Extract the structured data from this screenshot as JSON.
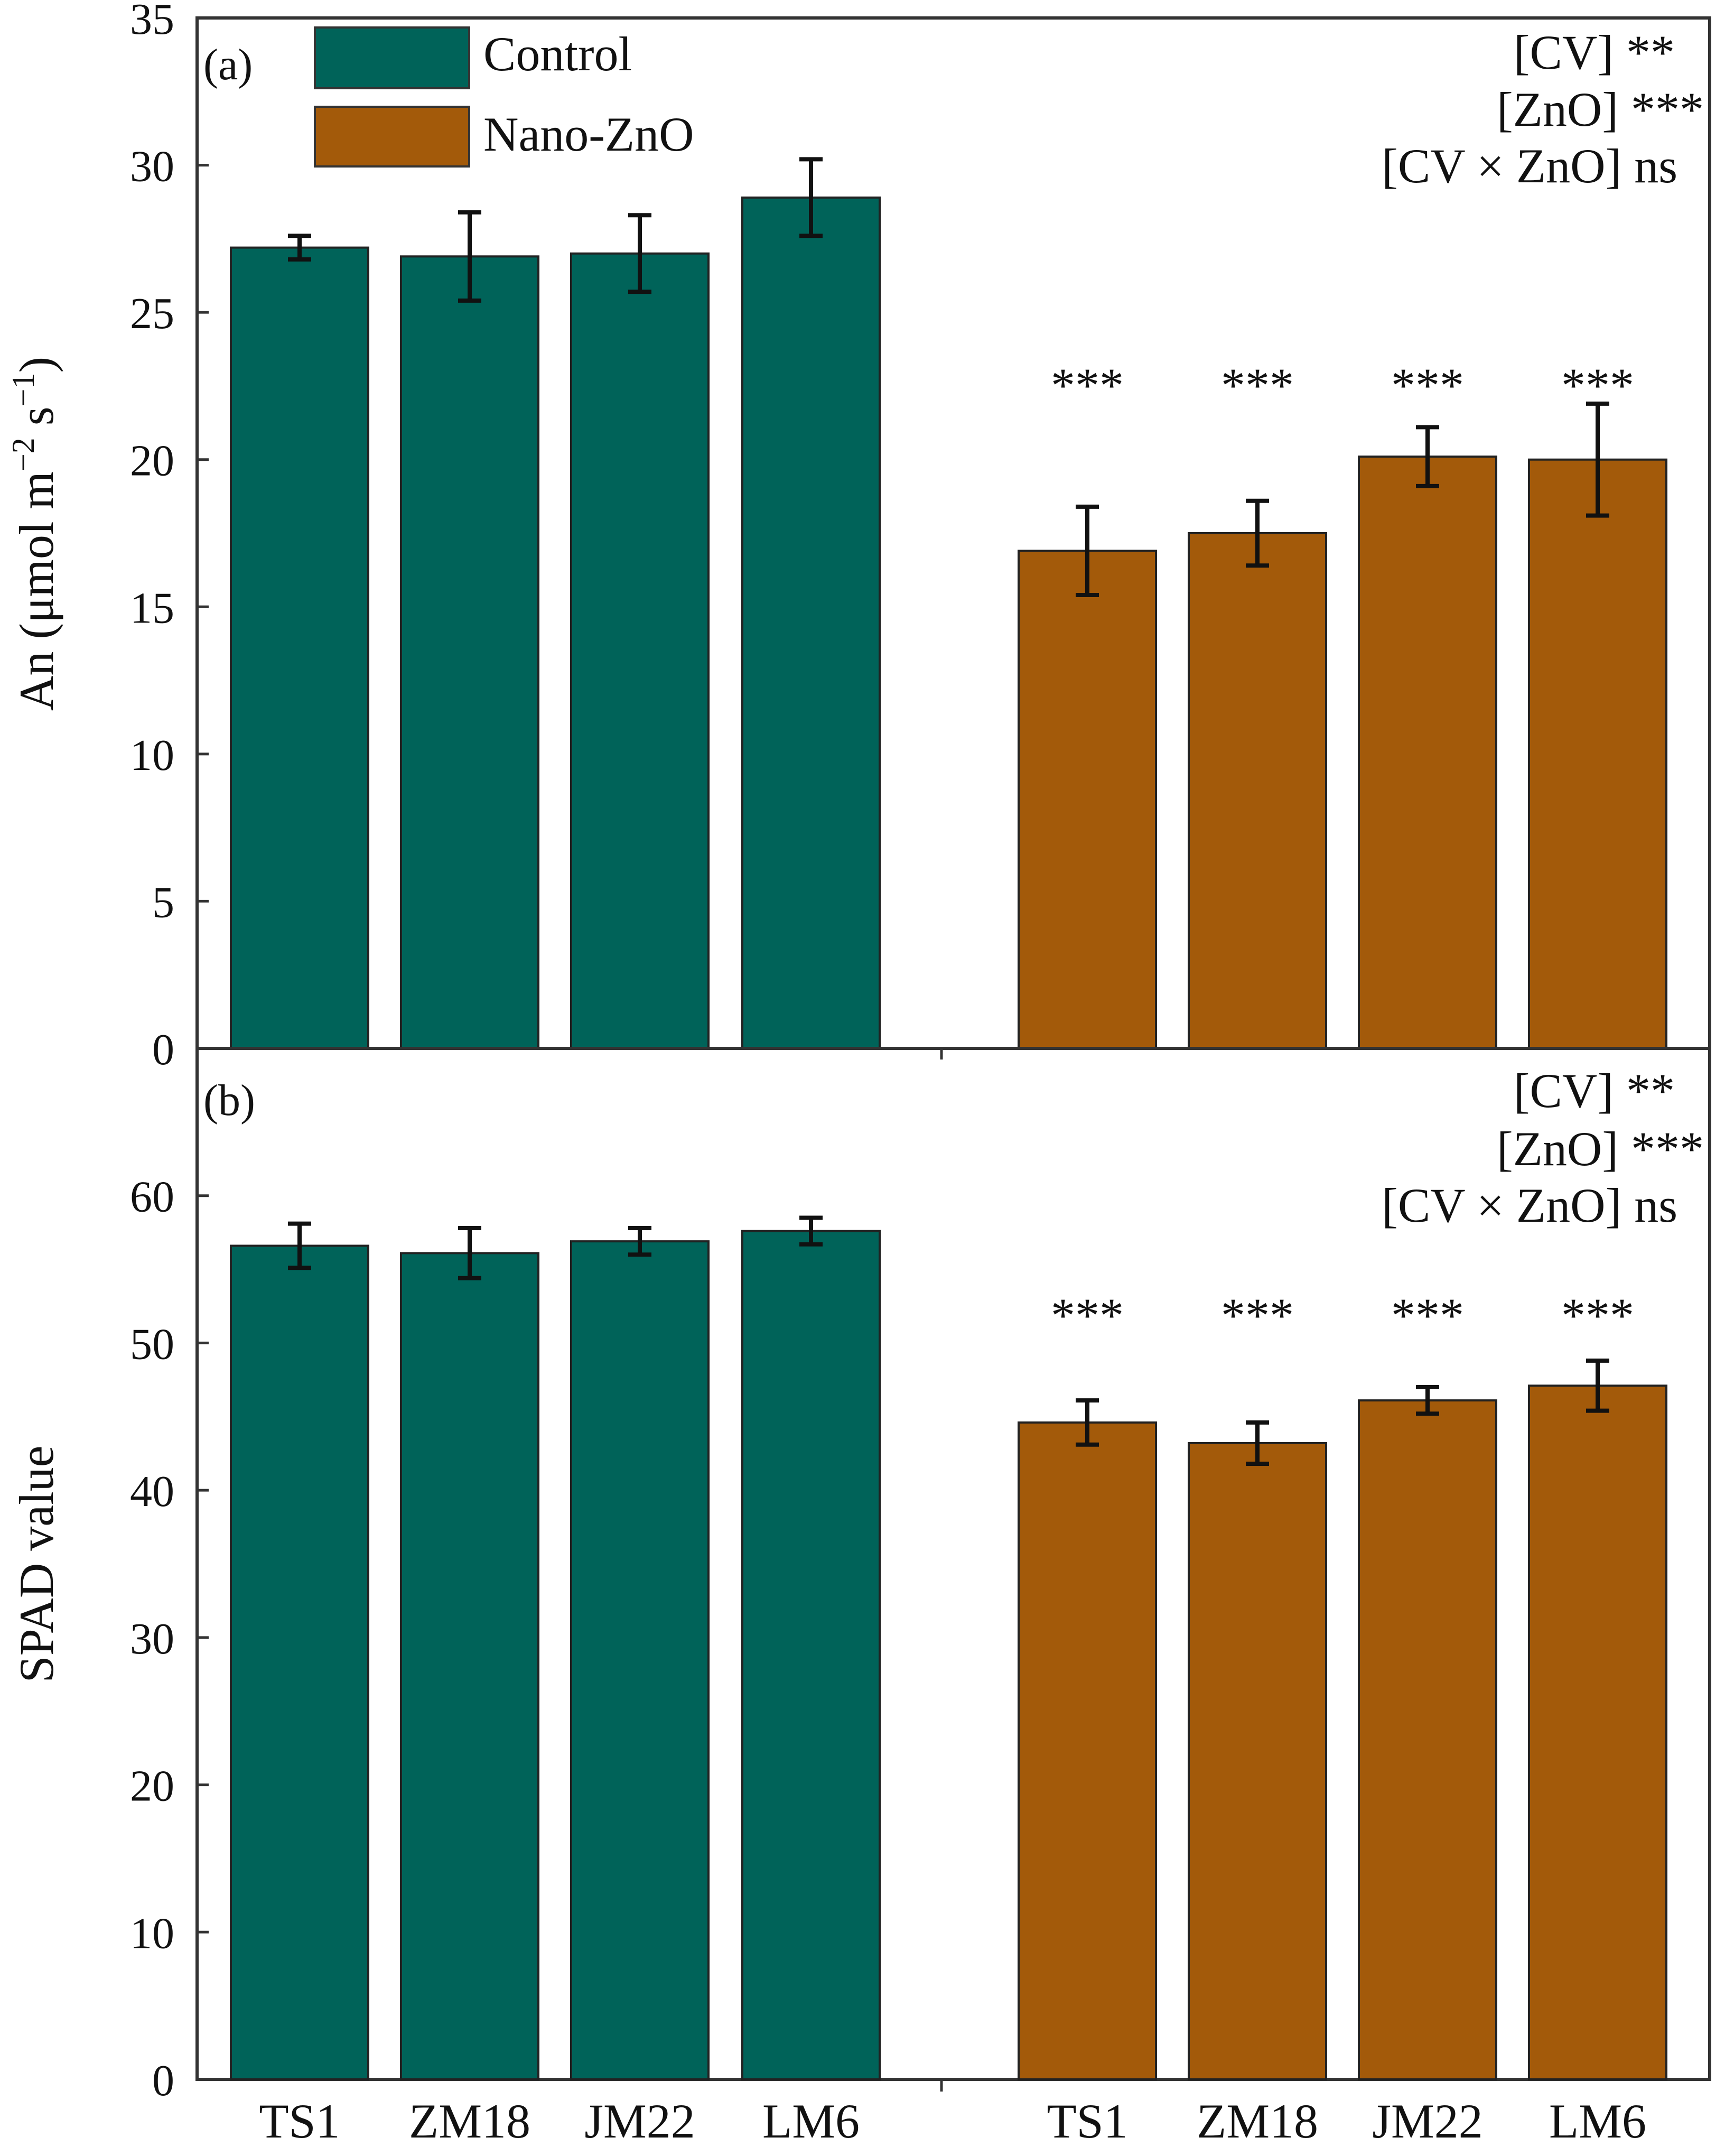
{
  "colors": {
    "control": "#006359",
    "nano": "#A35A0A",
    "axis": "#333333",
    "error": "#111111"
  },
  "legend": [
    {
      "label": "Control",
      "color": "#006359"
    },
    {
      "label": "Nano-ZnO",
      "color": "#A35A0A"
    }
  ],
  "chart_data": [
    {
      "type": "bar",
      "panel_label": "(a)",
      "ylabel_main": "An (μmol m",
      "ylabel_sup1": "−2",
      "ylabel_mid": " s",
      "ylabel_sup2": "−1",
      "ylabel_end": ")",
      "ylim": [
        0,
        35
      ],
      "yticks": [
        "0",
        "5",
        "10",
        "15",
        "20",
        "25",
        "30",
        "35"
      ],
      "categories": [
        "TS1",
        "ZM18",
        "JM22",
        "LM6",
        "TS1",
        "ZM18",
        "JM22",
        "LM6"
      ],
      "groups": [
        "Control",
        "Control",
        "Control",
        "Control",
        "Nano-ZnO",
        "Nano-ZnO",
        "Nano-ZnO",
        "Nano-ZnO"
      ],
      "values": [
        27.2,
        26.9,
        27.0,
        28.9,
        16.9,
        17.5,
        20.1,
        20.0
      ],
      "errors": [
        0.4,
        1.5,
        1.3,
        1.3,
        1.5,
        1.1,
        1.0,
        1.9
      ],
      "significance": [
        "",
        "",
        "",
        "",
        "***",
        "***",
        "***",
        "***"
      ],
      "stats": [
        {
          "factor": "[CV]",
          "level": "**"
        },
        {
          "factor": "[ZnO]",
          "level": "***"
        },
        {
          "factor": "[CV × ZnO]",
          "level": "ns"
        }
      ]
    },
    {
      "type": "bar",
      "panel_label": "(b)",
      "ylabel_main": "SPAD value",
      "ylim": [
        0,
        70
      ],
      "yticks": [
        "0",
        "10",
        "20",
        "30",
        "40",
        "50",
        "60"
      ],
      "categories": [
        "TS1",
        "ZM18",
        "JM22",
        "LM6",
        "TS1",
        "ZM18",
        "JM22",
        "LM6"
      ],
      "groups": [
        "Control",
        "Control",
        "Control",
        "Control",
        "Nano-ZnO",
        "Nano-ZnO",
        "Nano-ZnO",
        "Nano-ZnO"
      ],
      "values": [
        56.6,
        56.1,
        56.9,
        57.6,
        44.6,
        43.2,
        46.1,
        47.1
      ],
      "errors": [
        1.5,
        1.7,
        0.9,
        0.9,
        1.5,
        1.4,
        0.9,
        1.7
      ],
      "significance": [
        "",
        "",
        "",
        "",
        "***",
        "***",
        "***",
        "***"
      ],
      "stats": [
        {
          "factor": "[CV]",
          "level": "**"
        },
        {
          "factor": "[ZnO]",
          "level": "***"
        },
        {
          "factor": "[CV × ZnO]",
          "level": "ns"
        }
      ]
    }
  ]
}
